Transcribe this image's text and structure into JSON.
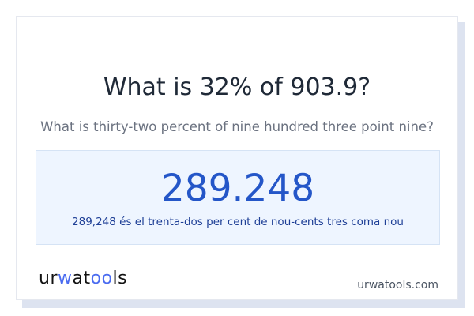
{
  "title": "What is 32% of 903.9?",
  "subtitle": "What is thirty-two percent of nine hundred three point nine?",
  "result": {
    "value": "289.248",
    "words": "289,248 és el trenta-dos per cent de nou-cents tres coma nou"
  },
  "logo": {
    "text": "urwatools",
    "accent": "#4b6cf0"
  },
  "site": "urwatools.com"
}
